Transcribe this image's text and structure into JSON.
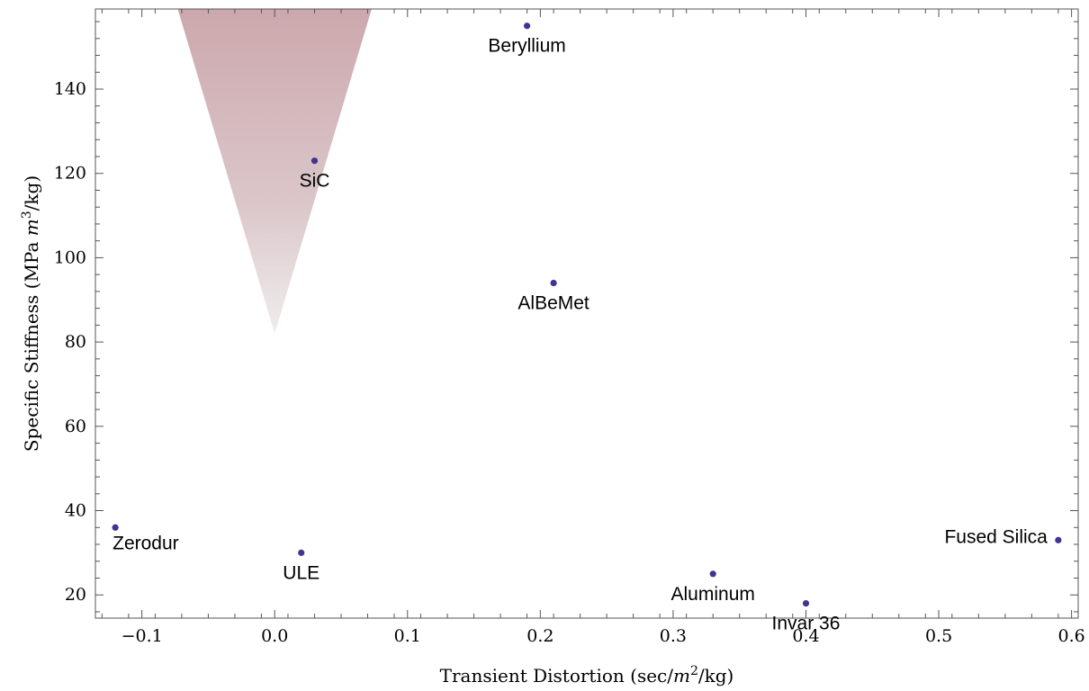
{
  "chart_data": {
    "type": "scatter",
    "xlabel": {
      "prefix": "Transient Distortion (sec/",
      "var": "m",
      "sup": "2",
      "suffix": "/kg)"
    },
    "ylabel": {
      "prefix": "Specific Stiffness (MPa ",
      "var": "m",
      "sup": "3",
      "suffix": "/kg)"
    },
    "xlim": [
      -0.135,
      0.605
    ],
    "ylim": [
      14.5,
      159
    ],
    "x_ticks": [
      -0.1,
      0.0,
      0.1,
      0.2,
      0.3,
      0.4,
      0.5,
      0.6
    ],
    "x_tick_labels": [
      "−0.1",
      "0.0",
      "0.1",
      "0.2",
      "0.3",
      "0.4",
      "0.5",
      "0.6"
    ],
    "y_ticks": [
      20,
      40,
      60,
      80,
      100,
      120,
      140
    ],
    "y_tick_labels": [
      "20",
      "40",
      "60",
      "80",
      "100",
      "120",
      "140"
    ],
    "grid": false,
    "point_color": "#3d3590",
    "region": {
      "shape": "triangle",
      "color": "#c9a3a8",
      "vertices": [
        [
          -0.073,
          159
        ],
        [
          0.073,
          159
        ],
        [
          0.0,
          82
        ]
      ]
    },
    "points": [
      {
        "label": "Beryllium",
        "x": 0.19,
        "y": 155,
        "label_pos": "below"
      },
      {
        "label": "SiC",
        "x": 0.03,
        "y": 123,
        "label_pos": "below"
      },
      {
        "label": "AlBeMet",
        "x": 0.21,
        "y": 94,
        "label_pos": "below"
      },
      {
        "label": "Zerodur",
        "x": -0.12,
        "y": 36,
        "label_pos": "below-right"
      },
      {
        "label": "ULE",
        "x": 0.02,
        "y": 30,
        "label_pos": "below"
      },
      {
        "label": "Aluminum",
        "x": 0.33,
        "y": 25,
        "label_pos": "below"
      },
      {
        "label": "Invar 36",
        "x": 0.4,
        "y": 18,
        "label_pos": "below"
      },
      {
        "label": "Fused Silica",
        "x": 0.59,
        "y": 33,
        "label_pos": "left"
      }
    ]
  }
}
